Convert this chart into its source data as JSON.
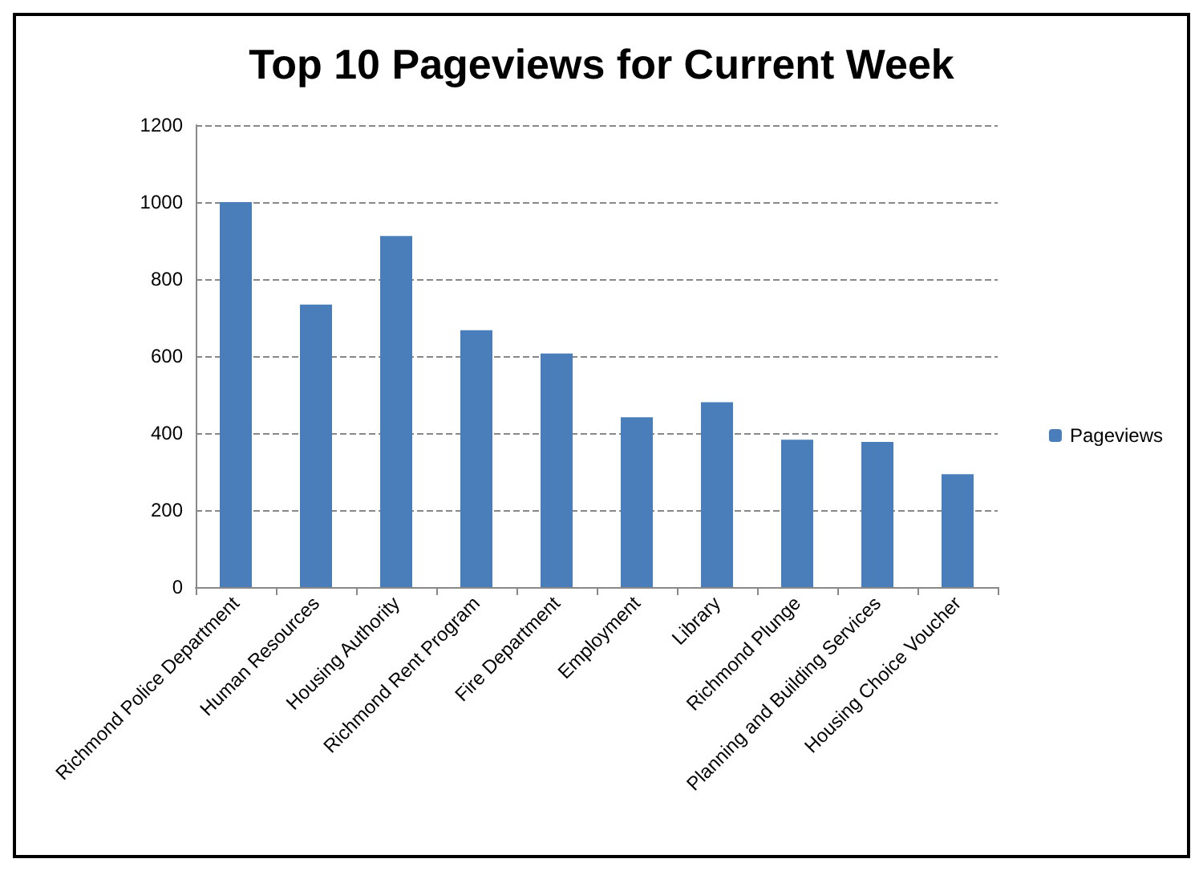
{
  "chart_data": {
    "type": "bar",
    "title": "Top 10 Pageviews for Current Week",
    "categories": [
      "Richmond Police Department",
      "Human Resources",
      "Housing Authority",
      "Richmond Rent Program",
      "Fire Department",
      "Employment",
      "Library",
      "Richmond Plunge",
      "Planning and Building Services",
      "Housing Choice Voucher"
    ],
    "series": [
      {
        "name": "Pageviews",
        "color": "#4a7ebb",
        "values": [
          1000,
          734,
          912,
          667,
          607,
          441,
          480,
          383,
          377,
          293
        ]
      }
    ],
    "ylim": [
      0,
      1200
    ],
    "yticks": [
      0,
      200,
      400,
      600,
      800,
      1000,
      1200
    ],
    "grid": "y",
    "legend": "right"
  }
}
